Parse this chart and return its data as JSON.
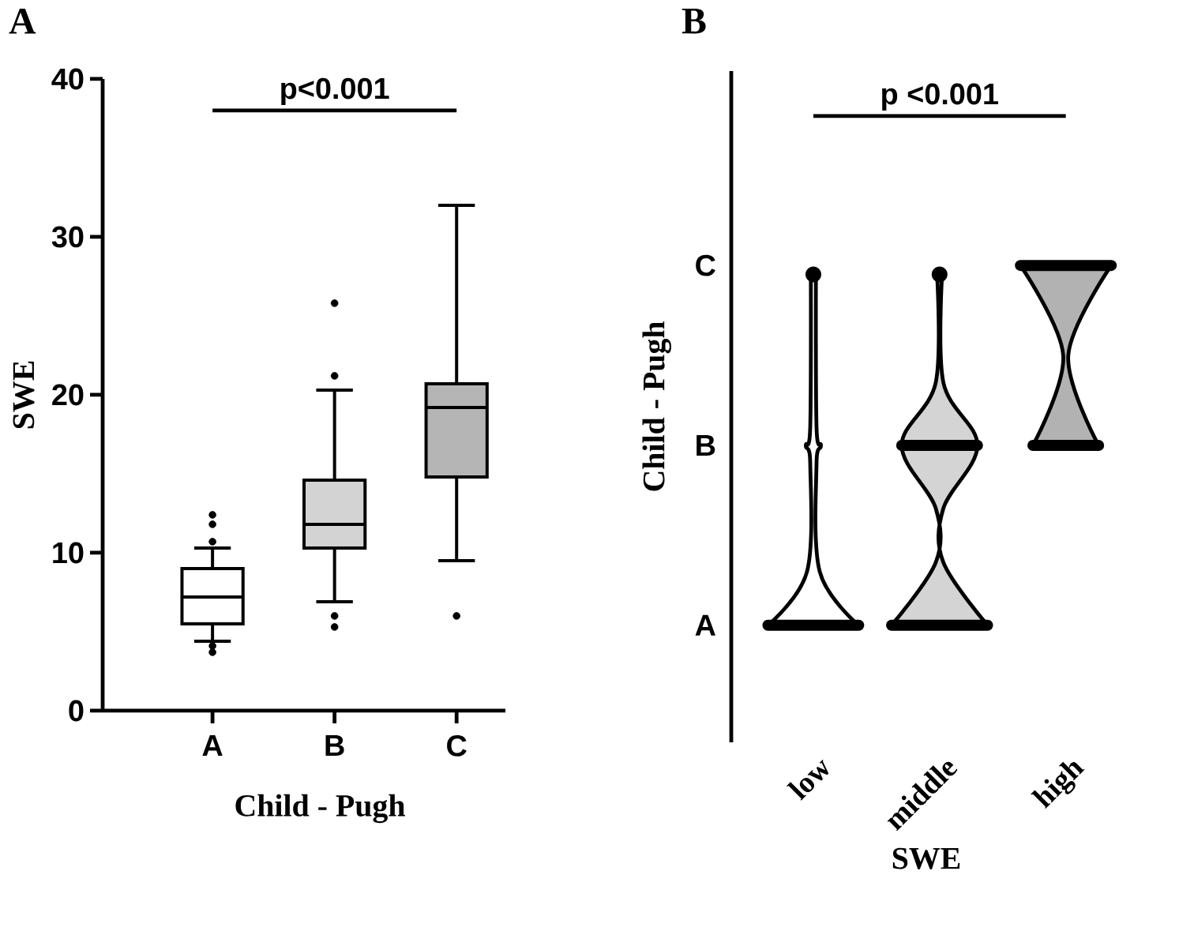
{
  "chart_data": [
    {
      "type": "box",
      "title": "A",
      "xlabel": "Child - Pugh",
      "ylabel": "SWE",
      "categories": [
        "A",
        "B",
        "C"
      ],
      "colors": [
        "#ffffff",
        "#d3d3d3",
        "#b5b5b5"
      ],
      "ylim": [
        0,
        40
      ],
      "yticks": [
        0,
        10,
        20,
        30,
        40
      ],
      "annotations": [
        "p<0.001"
      ],
      "boxes": [
        {
          "low": 4.4,
          "q1": 5.5,
          "median": 7.2,
          "q3": 9.0,
          "high": 10.3,
          "outliers": [
            3.7,
            4.1,
            10.7,
            11.8,
            12.4
          ]
        },
        {
          "low": 6.9,
          "q1": 10.3,
          "median": 11.8,
          "q3": 14.6,
          "high": 20.3,
          "outliers": [
            5.3,
            6.0,
            21.2,
            25.8
          ]
        },
        {
          "low": 9.5,
          "q1": 14.8,
          "median": 19.2,
          "q3": 20.7,
          "high": 32,
          "outliers": [
            6.0
          ]
        }
      ]
    },
    {
      "type": "other",
      "title": "B",
      "xlabel": "SWE",
      "ylabel": "Child - Pugh",
      "categories": [
        "low",
        "middle",
        "high"
      ],
      "y_categories": [
        "C",
        "B",
        "A"
      ],
      "annotations": [
        "p <0.001"
      ]
    }
  ]
}
